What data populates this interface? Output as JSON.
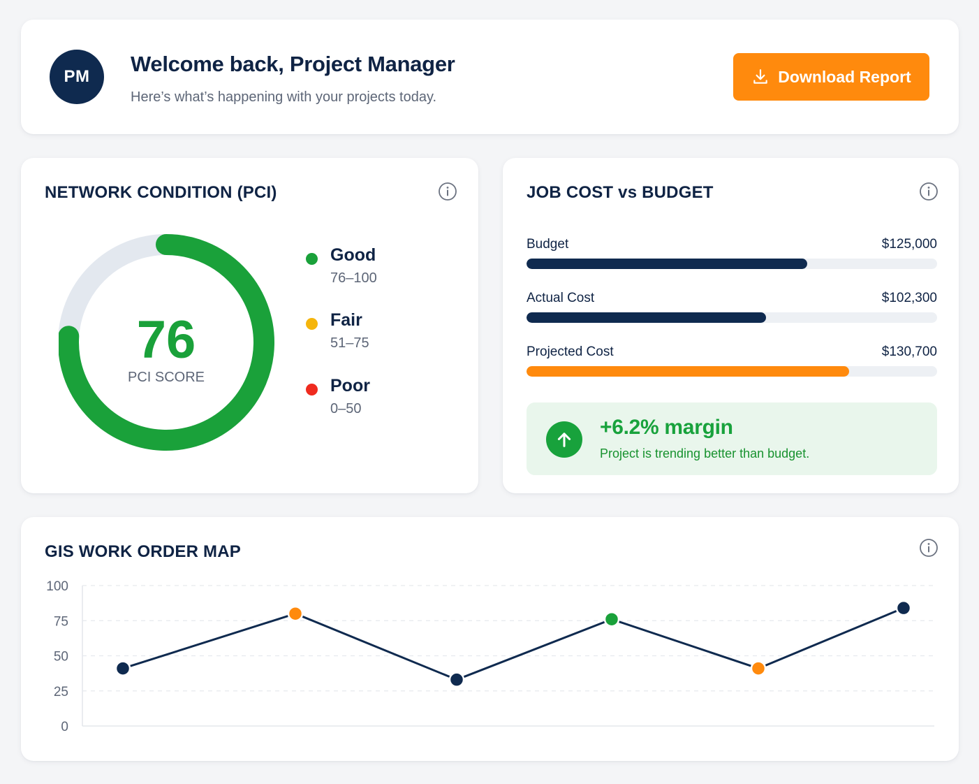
{
  "header": {
    "avatar_initials": "PM",
    "welcome": "Welcome back, Project Manager",
    "subtitle": "Here’s what’s happening with your projects today.",
    "download_label": "Download Report",
    "download_icon": "download-icon"
  },
  "pci": {
    "title": "NETWORK CONDITION (PCI)",
    "score": "76",
    "score_label": "PCI SCORE",
    "score_value": 76,
    "score_max": 100,
    "legend": [
      {
        "label": "Good",
        "range": "76–100",
        "color": "#1aa13a"
      },
      {
        "label": "Fair",
        "range": "51–75",
        "color": "#f5b50c"
      },
      {
        "label": "Poor",
        "range": "0–50",
        "color": "#ef2b1f"
      }
    ]
  },
  "jobcost": {
    "title": "JOB COST vs BUDGET",
    "bars": [
      {
        "label": "Budget",
        "value": "$125,000",
        "fraction": 0.684,
        "color": "#0f2a4f"
      },
      {
        "label": "Actual Cost",
        "value": "$102,300",
        "fraction": 0.584,
        "color": "#0f2a4f"
      },
      {
        "label": "Projected Cost",
        "value": "$130,700",
        "fraction": 0.785,
        "color": "#ff8a0d"
      }
    ],
    "margin_title": "+6.2% margin",
    "margin_desc": "Project is trending better than budget.",
    "margin_icon": "arrow-up-icon"
  },
  "gis": {
    "title": "GIS WORK ORDER MAP"
  },
  "chart_data": {
    "type": "line",
    "title": "",
    "xlabel": "",
    "ylabel": "",
    "ylim": [
      0,
      100
    ],
    "yticks": [
      "100",
      "75",
      "50",
      "25",
      "0"
    ],
    "x": [
      0,
      1,
      2,
      3,
      4,
      5
    ],
    "series": [
      {
        "values": [
          41,
          80,
          33,
          76,
          41,
          84
        ]
      }
    ],
    "point_colors": [
      "#0f2a4f",
      "#ff8a0d",
      "#0f2a4f",
      "#1aa13a",
      "#ff8a0d",
      "#0f2a4f"
    ],
    "line_color": "#0f2a4f",
    "grid": true
  }
}
